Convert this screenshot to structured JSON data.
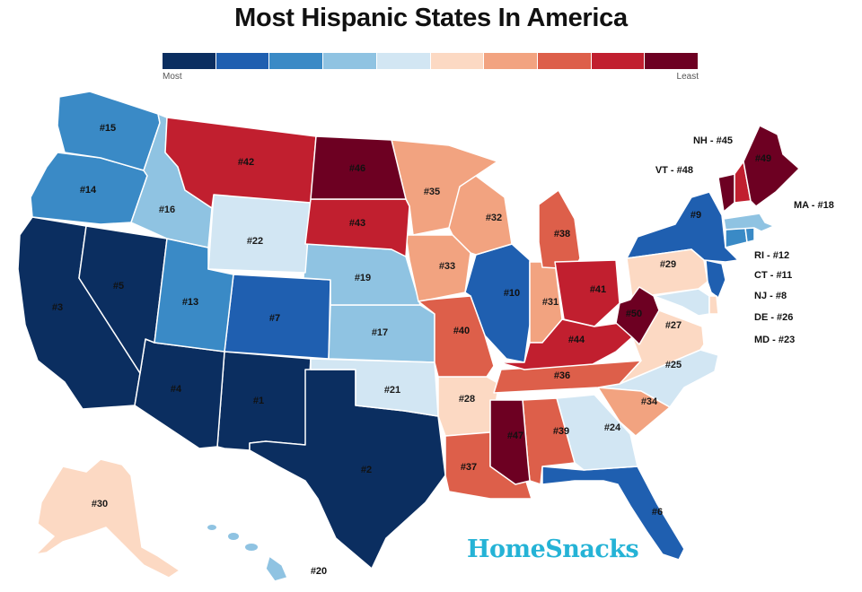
{
  "title": "Most Hispanic States In America",
  "legend": {
    "min_label": "Most",
    "max_label": "Least",
    "colors": [
      "#0b2e60",
      "#1f5fb0",
      "#3a8ac6",
      "#8fc3e2",
      "#d2e6f3",
      "#fcd9c3",
      "#f2a380",
      "#dd5f4a",
      "#c11f2f",
      "#6d0022"
    ]
  },
  "brand": "HomeSnacks",
  "states": [
    {
      "code": "NM",
      "rank": "#1",
      "bin": 0
    },
    {
      "code": "TX",
      "rank": "#2",
      "bin": 0
    },
    {
      "code": "CA",
      "rank": "#3",
      "bin": 0
    },
    {
      "code": "AZ",
      "rank": "#4",
      "bin": 0
    },
    {
      "code": "NV",
      "rank": "#5",
      "bin": 0
    },
    {
      "code": "FL",
      "rank": "#6",
      "bin": 1
    },
    {
      "code": "CO",
      "rank": "#7",
      "bin": 1
    },
    {
      "code": "NJ",
      "rank": "#8",
      "bin": 1
    },
    {
      "code": "NY",
      "rank": "#9",
      "bin": 1
    },
    {
      "code": "IL",
      "rank": "#10",
      "bin": 1
    },
    {
      "code": "CT",
      "rank": "#11",
      "bin": 2
    },
    {
      "code": "RI",
      "rank": "#12",
      "bin": 2
    },
    {
      "code": "UT",
      "rank": "#13",
      "bin": 2
    },
    {
      "code": "OR",
      "rank": "#14",
      "bin": 2
    },
    {
      "code": "WA",
      "rank": "#15",
      "bin": 2
    },
    {
      "code": "ID",
      "rank": "#16",
      "bin": 3
    },
    {
      "code": "KS",
      "rank": "#17",
      "bin": 3
    },
    {
      "code": "MA",
      "rank": "#18",
      "bin": 3
    },
    {
      "code": "NE",
      "rank": "#19",
      "bin": 3
    },
    {
      "code": "HI",
      "rank": "#20",
      "bin": 3
    },
    {
      "code": "OK",
      "rank": "#21",
      "bin": 4
    },
    {
      "code": "WY",
      "rank": "#22",
      "bin": 4
    },
    {
      "code": "MD",
      "rank": "#23",
      "bin": 4
    },
    {
      "code": "GA",
      "rank": "#24",
      "bin": 4
    },
    {
      "code": "NC",
      "rank": "#25",
      "bin": 4
    },
    {
      "code": "DE",
      "rank": "#26",
      "bin": 5
    },
    {
      "code": "VA",
      "rank": "#27",
      "bin": 5
    },
    {
      "code": "AR",
      "rank": "#28",
      "bin": 5
    },
    {
      "code": "PA",
      "rank": "#29",
      "bin": 5
    },
    {
      "code": "AK",
      "rank": "#30",
      "bin": 5
    },
    {
      "code": "IN",
      "rank": "#31",
      "bin": 6
    },
    {
      "code": "WI",
      "rank": "#32",
      "bin": 6
    },
    {
      "code": "IA",
      "rank": "#33",
      "bin": 6
    },
    {
      "code": "SC",
      "rank": "#34",
      "bin": 6
    },
    {
      "code": "MN",
      "rank": "#35",
      "bin": 6
    },
    {
      "code": "TN",
      "rank": "#36",
      "bin": 7
    },
    {
      "code": "LA",
      "rank": "#37",
      "bin": 7
    },
    {
      "code": "MI",
      "rank": "#38",
      "bin": 7
    },
    {
      "code": "AL",
      "rank": "#39",
      "bin": 7
    },
    {
      "code": "MO",
      "rank": "#40",
      "bin": 7
    },
    {
      "code": "OH",
      "rank": "#41",
      "bin": 8
    },
    {
      "code": "MT",
      "rank": "#42",
      "bin": 8
    },
    {
      "code": "SD",
      "rank": "#43",
      "bin": 8
    },
    {
      "code": "KY",
      "rank": "#44",
      "bin": 8
    },
    {
      "code": "NH",
      "rank": "#45",
      "bin": 8
    },
    {
      "code": "ND",
      "rank": "#46",
      "bin": 9
    },
    {
      "code": "MS",
      "rank": "#47",
      "bin": 9
    },
    {
      "code": "VT",
      "rank": "#48",
      "bin": 9
    },
    {
      "code": "ME",
      "rank": "#49",
      "bin": 9
    },
    {
      "code": "WV",
      "rank": "#50",
      "bin": 9
    }
  ],
  "callouts": [
    {
      "code": "NH",
      "text": "NH - #45"
    },
    {
      "code": "VT",
      "text": "VT - #48"
    },
    {
      "code": "MA",
      "text": "MA - #18"
    },
    {
      "code": "RI",
      "text": "RI - #12"
    },
    {
      "code": "CT",
      "text": "CT - #11"
    },
    {
      "code": "NJ",
      "text": "NJ - #8"
    },
    {
      "code": "DE",
      "text": "DE - #26"
    },
    {
      "code": "MD",
      "text": "MD - #23"
    }
  ]
}
